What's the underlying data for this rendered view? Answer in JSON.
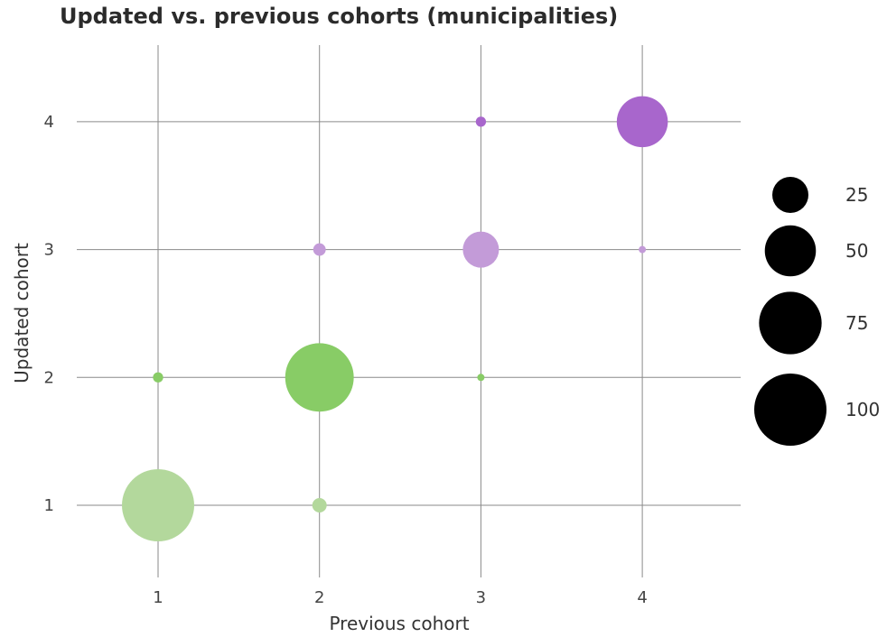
{
  "chart_data": {
    "type": "scatter",
    "title": "Updated vs. previous cohorts (municipalities)",
    "xlabel": "Previous cohort",
    "ylabel": "Updated cohort",
    "x_ticks": [
      1,
      2,
      3,
      4
    ],
    "y_ticks": [
      1,
      2,
      3,
      4
    ],
    "xlim": [
      0.45,
      4.6
    ],
    "ylim": [
      0.45,
      4.6
    ],
    "grid": true,
    "size_legend": {
      "placement": "right",
      "values": [
        25,
        50,
        75,
        100
      ]
    },
    "points": [
      {
        "x": 1,
        "y": 1,
        "size": 100,
        "color": "#b3d89c"
      },
      {
        "x": 2,
        "y": 1,
        "size": 4,
        "color": "#b3d89c"
      },
      {
        "x": 1,
        "y": 2,
        "size": 2,
        "color": "#88cc66"
      },
      {
        "x": 2,
        "y": 2,
        "size": 90,
        "color": "#88cc66"
      },
      {
        "x": 3,
        "y": 2,
        "size": 1,
        "color": "#88cc66"
      },
      {
        "x": 2,
        "y": 3,
        "size": 3,
        "color": "#c39bd8"
      },
      {
        "x": 3,
        "y": 3,
        "size": 25,
        "color": "#c39bd8"
      },
      {
        "x": 4,
        "y": 3,
        "size": 1,
        "color": "#c39bd8"
      },
      {
        "x": 3,
        "y": 4,
        "size": 2,
        "color": "#a866cc"
      },
      {
        "x": 4,
        "y": 4,
        "size": 50,
        "color": "#a866cc"
      }
    ]
  }
}
